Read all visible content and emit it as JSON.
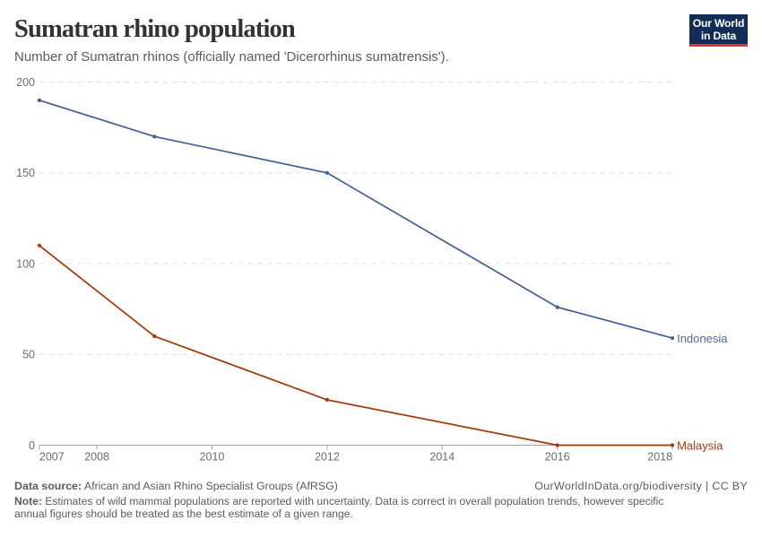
{
  "header": {
    "title": "Sumatran rhino population",
    "subtitle": "Number of Sumatran rhinos (officially named 'Dicerorhinus sumatrensis').",
    "logo": {
      "line1": "Our World",
      "line2": "in Data"
    }
  },
  "chart_data": {
    "type": "line",
    "title": "Sumatran rhino population",
    "subtitle": "Number of Sumatran rhinos (officially named 'Dicerorhinus sumatrensis').",
    "xlabel": "",
    "ylabel": "",
    "xlim": [
      2007,
      2018
    ],
    "ylim": [
      0,
      200
    ],
    "xticks": [
      2007,
      2008,
      2010,
      2012,
      2014,
      2016,
      2018
    ],
    "yticks": [
      0,
      50,
      100,
      150,
      200
    ],
    "grid": "horizontal-dashed",
    "legend": "end-of-line-labels",
    "series": [
      {
        "name": "Indonesia",
        "color": "#3f5e95",
        "label_color": "#4c6a9c",
        "x": [
          2007,
          2009,
          2012,
          2016,
          2018
        ],
        "values": [
          190,
          170,
          150,
          76,
          59
        ]
      },
      {
        "name": "Malaysia",
        "color": "#a33605",
        "label_color": "#b13507",
        "x": [
          2007,
          2009,
          2012,
          2016,
          2018
        ],
        "values": [
          110,
          60,
          25,
          0,
          0
        ]
      }
    ]
  },
  "axis_style": {
    "gridline_color": "#e0e0e0",
    "axis_color": "#a5a5a5",
    "tick_label_color": "#6b6b6b"
  },
  "footer": {
    "datasource_label": "Data source:",
    "datasource_text": "African and Asian Rhino Specialist Groups (AfRSG)",
    "attribution": "OurWorldInData.org/biodiversity | CC BY",
    "note_label": "Note:",
    "note_text": "Estimates of wild mammal populations are reported with uncertainty. Data is correct in overall population trends, however specific annual figures should be treated as the best estimate of a given range."
  }
}
